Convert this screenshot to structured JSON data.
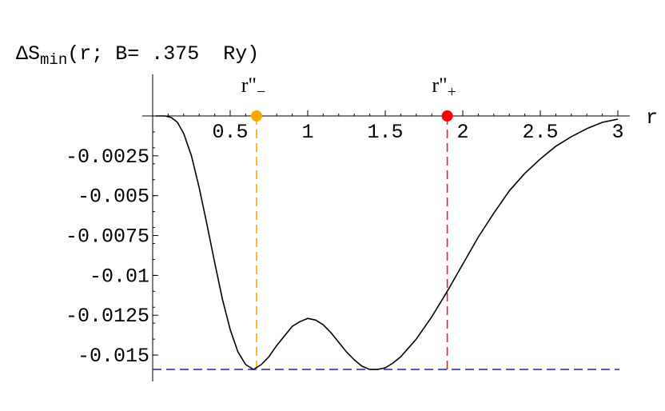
{
  "chart_data": {
    "type": "line",
    "title": {
      "prefix": "ΔS",
      "subscript": "min",
      "rest": "(r; B= .375  Ry)"
    },
    "xlabel": "r",
    "ylabel": "",
    "xlim": [
      0.0,
      3.0
    ],
    "ylim": [
      -0.0159,
      0.0
    ],
    "x_ticks": [
      {
        "value": 0.5,
        "label": "0.5"
      },
      {
        "value": 1.0,
        "label": "1"
      },
      {
        "value": 1.5,
        "label": "1.5"
      },
      {
        "value": 2.0,
        "label": "2"
      },
      {
        "value": 2.5,
        "label": "2.5"
      },
      {
        "value": 3.0,
        "label": "3"
      }
    ],
    "y_ticks": [
      {
        "value": -0.0025,
        "label": "-0.0025"
      },
      {
        "value": -0.005,
        "label": "-0.005"
      },
      {
        "value": -0.0075,
        "label": "-0.0075"
      },
      {
        "value": -0.01,
        "label": "-0.01"
      },
      {
        "value": -0.0125,
        "label": "-0.0125"
      },
      {
        "value": -0.015,
        "label": "-0.015"
      }
    ],
    "grid": false,
    "series": [
      {
        "color": "#000000",
        "points": [
          [
            0.02,
            0.0
          ],
          [
            0.08,
            0.0
          ],
          [
            0.12,
            -0.0001
          ],
          [
            0.16,
            -0.0004
          ],
          [
            0.2,
            -0.0011
          ],
          [
            0.25,
            -0.0025
          ],
          [
            0.3,
            -0.0045
          ],
          [
            0.35,
            -0.0068
          ],
          [
            0.4,
            -0.0092
          ],
          [
            0.45,
            -0.0115
          ],
          [
            0.5,
            -0.0134
          ],
          [
            0.55,
            -0.0148
          ],
          [
            0.6,
            -0.0156
          ],
          [
            0.65,
            -0.0159
          ],
          [
            0.7,
            -0.0156
          ],
          [
            0.75,
            -0.0151
          ],
          [
            0.8,
            -0.0144
          ],
          [
            0.85,
            -0.0138
          ],
          [
            0.9,
            -0.0132
          ],
          [
            0.95,
            -0.0129
          ],
          [
            1.0,
            -0.0127
          ],
          [
            1.05,
            -0.0128
          ],
          [
            1.1,
            -0.0131
          ],
          [
            1.15,
            -0.0136
          ],
          [
            1.2,
            -0.0142
          ],
          [
            1.25,
            -0.0148
          ],
          [
            1.3,
            -0.0153
          ],
          [
            1.35,
            -0.0157
          ],
          [
            1.4,
            -0.0159
          ],
          [
            1.45,
            -0.0159
          ],
          [
            1.5,
            -0.0158
          ],
          [
            1.55,
            -0.0155
          ],
          [
            1.6,
            -0.0151
          ],
          [
            1.7,
            -0.014
          ],
          [
            1.8,
            -0.0126
          ],
          [
            1.9,
            -0.011
          ],
          [
            2.0,
            -0.0093
          ],
          [
            2.1,
            -0.0076
          ],
          [
            2.2,
            -0.0061
          ],
          [
            2.3,
            -0.0047
          ],
          [
            2.4,
            -0.0036
          ],
          [
            2.5,
            -0.0027
          ],
          [
            2.6,
            -0.0019
          ],
          [
            2.7,
            -0.0013
          ],
          [
            2.8,
            -0.0008
          ],
          [
            2.9,
            -0.0004
          ],
          [
            3.0,
            -0.0002
          ]
        ]
      }
    ],
    "markers": [
      {
        "label_base": "r\"",
        "label_sub": "−",
        "x": 0.67,
        "color": "#ffa500",
        "line_color": "#ffa500"
      },
      {
        "label_base": "r\"",
        "label_sub": "+",
        "x": 1.9,
        "color": "#ff0000",
        "line_color": "#e82020"
      }
    ],
    "min_line": {
      "y": -0.0159,
      "color": "#2222bb"
    }
  }
}
